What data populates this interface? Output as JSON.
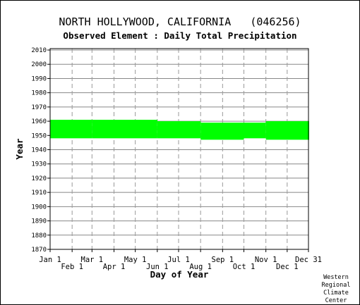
{
  "header": {
    "title": "NORTH HOLLYWOOD, CALIFORNIA   (046256)",
    "subtitle": "Observed Element : Daily Total Precipitation"
  },
  "credit": [
    "Western",
    "Regional",
    "Climate",
    "Center"
  ],
  "colors": {
    "data": "#00ff00",
    "grid_solid": "#888888",
    "grid_dashed": "#999999",
    "axis": "#000000"
  },
  "chart_data": {
    "type": "heatmap",
    "title": "NORTH HOLLYWOOD, CALIFORNIA   (046256)",
    "subtitle": "Observed Element : Daily Total Precipitation",
    "xlabel": "Day of Year",
    "ylabel": "Year",
    "xlim": [
      1,
      365
    ],
    "ylim": [
      1870,
      2011
    ],
    "yticks": [
      1870,
      1880,
      1890,
      1900,
      1910,
      1920,
      1930,
      1940,
      1950,
      1960,
      1970,
      1980,
      1990,
      2000,
      2010
    ],
    "xticks": [
      {
        "day": 1,
        "label": "Jan 1",
        "row": "top"
      },
      {
        "day": 32,
        "label": "Feb 1",
        "row": "bottom"
      },
      {
        "day": 60,
        "label": "Mar 1",
        "row": "top"
      },
      {
        "day": 91,
        "label": "Apr 1",
        "row": "bottom"
      },
      {
        "day": 121,
        "label": "May 1",
        "row": "top"
      },
      {
        "day": 152,
        "label": "Jun 1",
        "row": "bottom"
      },
      {
        "day": 182,
        "label": "Jul 1",
        "row": "top"
      },
      {
        "day": 213,
        "label": "Aug 1",
        "row": "bottom"
      },
      {
        "day": 244,
        "label": "Sep 1",
        "row": "top"
      },
      {
        "day": 274,
        "label": "Oct 1",
        "row": "bottom"
      },
      {
        "day": 305,
        "label": "Nov 1",
        "row": "top"
      },
      {
        "day": 335,
        "label": "Dec 1",
        "row": "bottom"
      },
      {
        "day": 365,
        "label": "Dec 31",
        "row": "top"
      }
    ],
    "grid": true,
    "series": [
      {
        "values": [
          {
            "day_start": 1,
            "day_end": 59,
            "year_start": 1948,
            "year_end": 1961
          },
          {
            "day_start": 60,
            "day_end": 151,
            "year_start": 1948,
            "year_end": 1961
          },
          {
            "day_start": 152,
            "day_end": 212,
            "year_start": 1948,
            "year_end": 1960
          },
          {
            "day_start": 213,
            "day_end": 273,
            "year_start": 1947,
            "year_end": 1959
          },
          {
            "day_start": 274,
            "day_end": 304,
            "year_start": 1948,
            "year_end": 1959
          },
          {
            "day_start": 305,
            "day_end": 365,
            "year_start": 1947,
            "year_end": 1960
          }
        ]
      }
    ]
  }
}
